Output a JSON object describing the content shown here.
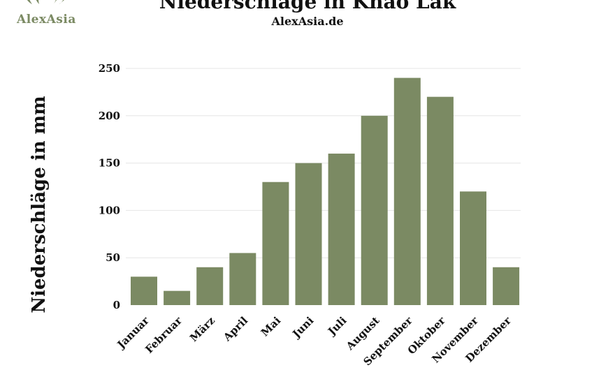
{
  "logo": {
    "text": "AlexAsia"
  },
  "chart_data": {
    "type": "bar",
    "title": "Niederschläge in Khao Lak",
    "subtitle": "AlexAsia.de",
    "xlabel": "",
    "ylabel": "Niederschläge in mm",
    "categories": [
      "Januar",
      "Februar",
      "März",
      "April",
      "Mai",
      "Juni",
      "Juli",
      "August",
      "September",
      "Oktober",
      "November",
      "Dezember"
    ],
    "values": [
      30,
      15,
      40,
      55,
      130,
      150,
      160,
      200,
      240,
      220,
      120,
      40
    ],
    "ylim": [
      0,
      250
    ],
    "yticks": [
      0,
      50,
      100,
      150,
      200,
      250
    ],
    "grid": true,
    "legend": "none",
    "colors": {
      "bar": "#7b8a63",
      "logo": "#7b8a63"
    }
  }
}
